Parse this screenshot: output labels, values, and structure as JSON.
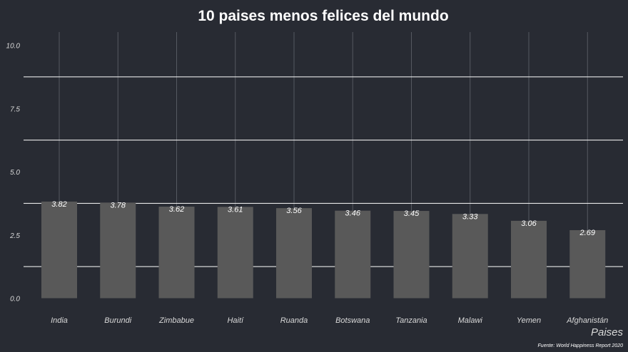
{
  "chart_data": {
    "type": "bar",
    "title": "10 paises menos felices del mundo",
    "xlabel": "Paises",
    "ylabel": "",
    "caption": "Fuente: World Happiness Report 2020",
    "categories": [
      "India",
      "Burundi",
      "Zimbabue",
      "Haití",
      "Ruanda",
      "Botswana",
      "Tanzania",
      "Malawi",
      "Yemen",
      "Afghanistán"
    ],
    "values": [
      3.82,
      3.78,
      3.62,
      3.61,
      3.56,
      3.46,
      3.45,
      3.33,
      3.06,
      2.69
    ],
    "value_labels": [
      "3.82",
      "3.78",
      "3.62",
      "3.61",
      "3.56",
      "3.46",
      "3.45",
      "3.33",
      "3.06",
      "2.69"
    ],
    "ylim": [
      0,
      10
    ],
    "yticks": [
      "0.0",
      "2.5",
      "5.0",
      "7.5",
      "10.0"
    ],
    "grid": true,
    "colors": {
      "background": "#282b33",
      "bar": "#595959",
      "grid_major": "#ffffff",
      "grid_vertical": "#555961",
      "text": "#ffffff",
      "axis_text": "#d9d9d9"
    }
  }
}
